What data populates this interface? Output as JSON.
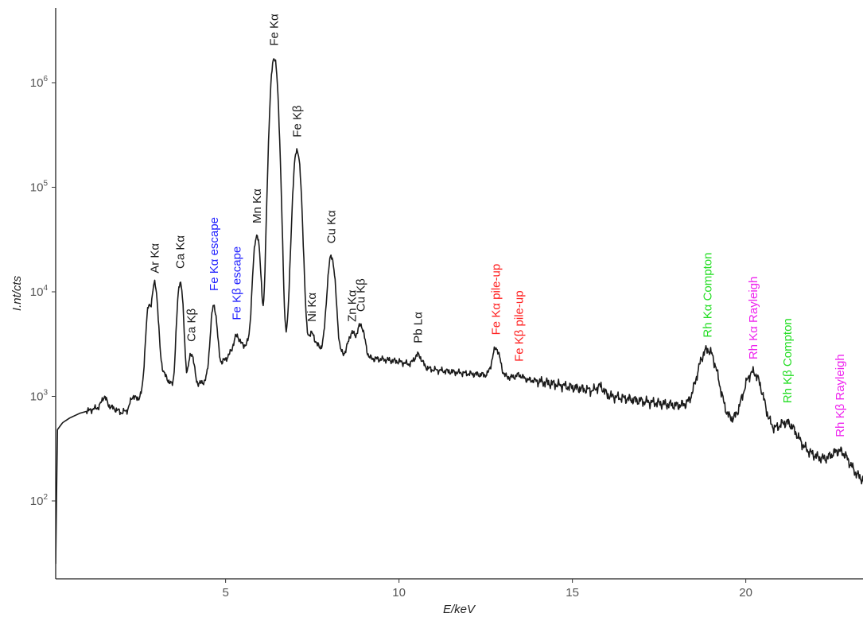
{
  "chart_data": {
    "type": "line",
    "title": "",
    "xlabel": "E/keV",
    "ylabel": "I.nt/cts",
    "x_scale": "linear",
    "y_scale": "log",
    "xlim": [
      0.1,
      23.9
    ],
    "ylim": [
      15,
      5000000
    ],
    "x_ticks": [
      5,
      10,
      15,
      20
    ],
    "x_tick_labels": [
      "5",
      "10",
      "15",
      "20"
    ],
    "y_ticks": [
      100,
      1000,
      10000,
      100000,
      1000000
    ],
    "y_tick_labels": [
      {
        "base": "10",
        "exp": "2"
      },
      {
        "base": "10",
        "exp": "3"
      },
      {
        "base": "10",
        "exp": "4"
      },
      {
        "base": "10",
        "exp": "5"
      },
      {
        "base": "10",
        "exp": "6"
      }
    ],
    "grid": false,
    "line_color": "#1a1a1a",
    "colors": {
      "black": "#1a1a1a",
      "escape": "#1f1fff",
      "pileup": "#ff1f1f",
      "compton": "#22dd22",
      "rayleigh": "#ee22ee"
    },
    "baseline": [
      [
        0.1,
        25
      ],
      [
        0.15,
        480
      ],
      [
        0.3,
        560
      ],
      [
        0.5,
        620
      ],
      [
        0.8,
        690
      ],
      [
        1.0,
        720
      ],
      [
        1.3,
        780
      ],
      [
        1.5,
        850
      ],
      [
        1.8,
        760
      ],
      [
        2.0,
        700
      ],
      [
        2.2,
        740
      ],
      [
        2.3,
        760
      ],
      [
        2.6,
        1100
      ],
      [
        2.8,
        1900
      ],
      [
        3.3,
        1500
      ],
      [
        3.5,
        1200
      ],
      [
        3.9,
        1150
      ],
      [
        4.4,
        1400
      ],
      [
        4.9,
        2100
      ],
      [
        5.2,
        2700
      ],
      [
        5.8,
        3400
      ],
      [
        6.4,
        4000
      ],
      [
        7.0,
        3700
      ],
      [
        7.6,
        3000
      ],
      [
        8.2,
        2600
      ],
      [
        8.7,
        2400
      ],
      [
        9.2,
        2300
      ],
      [
        9.6,
        2250
      ],
      [
        10.0,
        2150
      ],
      [
        10.5,
        1950
      ],
      [
        11.0,
        1800
      ],
      [
        11.5,
        1720
      ],
      [
        12.0,
        1650
      ],
      [
        12.5,
        1600
      ],
      [
        13.0,
        1550
      ],
      [
        14.0,
        1400
      ],
      [
        15.0,
        1220
      ],
      [
        15.5,
        1150
      ],
      [
        16.0,
        1020
      ],
      [
        16.5,
        960
      ],
      [
        17.0,
        900
      ],
      [
        17.5,
        860
      ],
      [
        18.0,
        820
      ],
      [
        18.2,
        820
      ],
      [
        18.5,
        760
      ],
      [
        19.0,
        680
      ],
      [
        19.5,
        580
      ],
      [
        20.0,
        500
      ],
      [
        20.5,
        450
      ],
      [
        21.0,
        410
      ],
      [
        21.5,
        340
      ],
      [
        22.0,
        270
      ],
      [
        22.5,
        220
      ],
      [
        23.0,
        185
      ],
      [
        23.5,
        150
      ],
      [
        23.9,
        130
      ]
    ],
    "peaks": [
      {
        "label": "Ar Kα",
        "energy": 2.96,
        "counts": 12000
      },
      {
        "label": "Ca Kα",
        "energy": 3.69,
        "counts": 12500
      },
      {
        "label": "Ca Kβ",
        "energy": 4.01,
        "counts": 2600
      },
      {
        "label": "Fe Kα escape",
        "energy": 4.66,
        "counts": 7400
      },
      {
        "label": "Fe Kβ escape",
        "energy": 5.32,
        "counts": 3800
      },
      {
        "label": "Mn Kα",
        "energy": 5.9,
        "counts": 35000
      },
      {
        "label": "Fe Kα",
        "energy": 6.4,
        "counts": 1750000
      },
      {
        "label": "Fe Kβ",
        "energy": 7.06,
        "counts": 230000
      },
      {
        "label": "Ni Kα",
        "energy": 7.48,
        "counts": 4000
      },
      {
        "label": "Cu Kα",
        "energy": 8.05,
        "counts": 22000
      },
      {
        "label": "Zn Kα",
        "energy": 8.64,
        "counts": 4000
      },
      {
        "label": "Cu Kβ",
        "energy": 8.9,
        "counts": 4800
      },
      {
        "label": "Pb Lα",
        "energy": 10.55,
        "counts": 2500
      },
      {
        "label": "Fe Kα pile-up",
        "energy": 12.8,
        "counts": 2900
      },
      {
        "label": "Fe Kβ pile-up",
        "energy": 13.46,
        "counts": 1600
      },
      {
        "label": "Rh Kα Compton",
        "energy": 18.9,
        "counts": 2800
      },
      {
        "label": "Rh Kα Rayleigh",
        "energy": 20.21,
        "counts": 1700
      },
      {
        "label": "Rh Kβ Compton",
        "energy": 21.2,
        "counts": 560
      },
      {
        "label": "Rh Kβ Rayleigh",
        "energy": 22.72,
        "counts": 300
      }
    ],
    "minor_peaks": [
      [
        1.5,
        1000
      ],
      [
        2.32,
        1000
      ],
      [
        2.78,
        7000
      ],
      [
        3.12,
        2000
      ],
      [
        15.8,
        1250
      ]
    ]
  },
  "annotations": [
    {
      "text": "Ar Kα",
      "energy": 2.96,
      "counts": 14000,
      "color": "black"
    },
    {
      "text": "Ca Kα",
      "energy": 3.69,
      "counts": 15500,
      "color": "black"
    },
    {
      "text": "Ca Kβ",
      "energy": 4.01,
      "counts": 3100,
      "color": "black"
    },
    {
      "text": "Fe Kα escape",
      "energy": 4.66,
      "counts": 9500,
      "color": "escape"
    },
    {
      "text": "Fe Kβ escape",
      "energy": 5.32,
      "counts": 5000,
      "color": "escape"
    },
    {
      "text": "Mn Kα",
      "energy": 5.9,
      "counts": 42000,
      "color": "black"
    },
    {
      "text": "Fe Kα",
      "energy": 6.4,
      "counts": 2100000,
      "color": "black"
    },
    {
      "text": "Fe Kβ",
      "energy": 7.06,
      "counts": 280000,
      "color": "black"
    },
    {
      "text": "Ni Kα",
      "energy": 7.48,
      "counts": 4800,
      "color": "black"
    },
    {
      "text": "Cu Kα",
      "energy": 8.05,
      "counts": 27000,
      "color": "black"
    },
    {
      "text": "Zn Kα",
      "energy": 8.64,
      "counts": 4800,
      "color": "black"
    },
    {
      "text": "Cu Kβ",
      "energy": 8.9,
      "counts": 6000,
      "color": "black"
    },
    {
      "text": "Pb Lα",
      "energy": 10.55,
      "counts": 3000,
      "color": "black"
    },
    {
      "text": "Fe Kα pile-up",
      "energy": 12.8,
      "counts": 3600,
      "color": "pileup"
    },
    {
      "text": "Fe Kβ pile-up",
      "energy": 13.46,
      "counts": 2000,
      "color": "pileup"
    },
    {
      "text": "Rh Kα Compton",
      "energy": 18.9,
      "counts": 3400,
      "color": "compton"
    },
    {
      "text": "Rh Kα Rayleigh",
      "energy": 20.21,
      "counts": 2100,
      "color": "rayleigh"
    },
    {
      "text": "Rh Kβ Compton",
      "energy": 21.2,
      "counts": 800,
      "color": "compton"
    },
    {
      "text": "Rh Kβ Rayleigh",
      "energy": 22.72,
      "counts": 380,
      "color": "rayleigh"
    }
  ]
}
